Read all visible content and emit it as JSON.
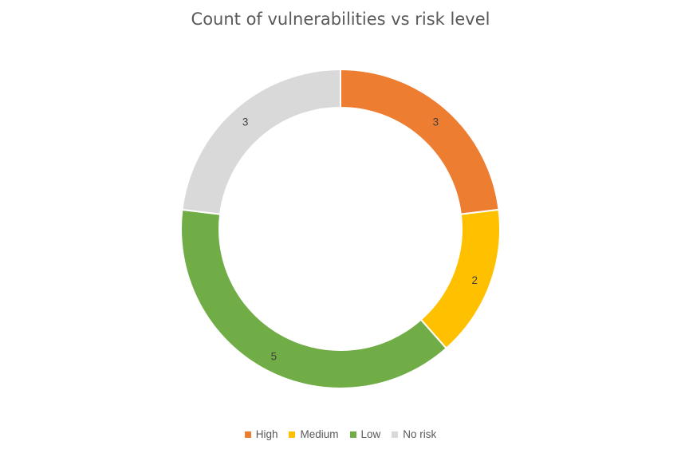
{
  "chart_data": {
    "type": "pie",
    "variant": "donut",
    "title": "Count of vulnerabilities vs risk level",
    "categories": [
      "High",
      "Medium",
      "Low",
      "No risk"
    ],
    "values": [
      3,
      2,
      5,
      3
    ],
    "data_labels": [
      "3",
      "2",
      "5",
      "3"
    ],
    "colors": [
      "#ED7D31",
      "#FFC000",
      "#70AD47",
      "#D9D9D9"
    ],
    "legend_position": "bottom",
    "start_angle": "top, clockwise"
  }
}
